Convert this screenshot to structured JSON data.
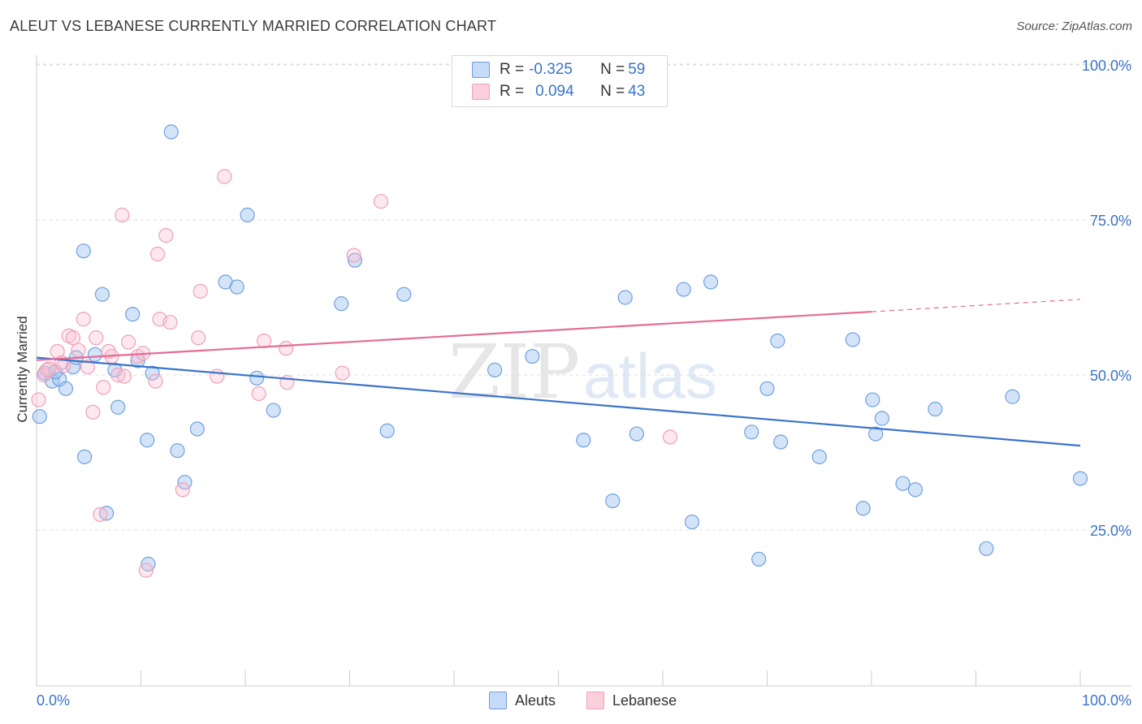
{
  "title": "ALEUT VS LEBANESE CURRENTLY MARRIED CORRELATION CHART",
  "source": "Source: ZipAtlas.com",
  "watermark": {
    "zip": "ZIP",
    "atlas": "atlas"
  },
  "legend": {
    "rows": [
      {
        "r_label": "R = ",
        "r_value": "-0.325",
        "n_label": "N = ",
        "n_value": "59"
      },
      {
        "r_label": "R = ",
        "r_value": "0.094",
        "n_label": "N = ",
        "n_value": "43"
      }
    ]
  },
  "bottom_legend": {
    "series_a": "Aleuts",
    "series_b": "Lebanese"
  },
  "chart_data": {
    "type": "scatter",
    "title": "ALEUT VS LEBANESE CURRENTLY MARRIED CORRELATION CHART",
    "ylabel": "Currently Married",
    "xlim": [
      0,
      100
    ],
    "ylim": [
      0,
      100
    ],
    "x_tick_labels": [
      "0.0%",
      "100.0%"
    ],
    "y_tick_labels": [
      "100.0%",
      "75.0%",
      "50.0%",
      "25.0%"
    ],
    "y_ticks": [
      100,
      75,
      50,
      25
    ],
    "grid": true,
    "legend_position": "top-center",
    "colors": {
      "aleuts": "#6fa0e0",
      "lebanese": "#f0a0b8",
      "aleuts_line": "#3b74c9",
      "lebanese_line": "#e46c96",
      "axis_text": "#3b74c9"
    },
    "series": [
      {
        "name": "Aleuts",
        "trend": {
          "x": [
            0,
            100
          ],
          "y": [
            52.8,
            38.6
          ]
        },
        "points": [
          [
            0.3,
            43.3
          ],
          [
            0.8,
            50.3
          ],
          [
            1.5,
            49.0
          ],
          [
            2.2,
            49.3
          ],
          [
            2.8,
            47.8
          ],
          [
            3.5,
            51.3
          ],
          [
            3.8,
            52.8
          ],
          [
            4.6,
            36.8
          ],
          [
            4.5,
            70.0
          ],
          [
            5.6,
            53.3
          ],
          [
            6.3,
            63.0
          ],
          [
            6.7,
            27.7
          ],
          [
            7.5,
            50.8
          ],
          [
            7.8,
            44.8
          ],
          [
            9.2,
            59.8
          ],
          [
            9.7,
            52.3
          ],
          [
            10.6,
            39.5
          ],
          [
            10.7,
            19.5
          ],
          [
            11.1,
            50.3
          ],
          [
            12.9,
            89.2
          ],
          [
            13.5,
            37.8
          ],
          [
            14.2,
            32.7
          ],
          [
            15.4,
            41.3
          ],
          [
            18.1,
            65.0
          ],
          [
            19.2,
            64.2
          ],
          [
            20.2,
            75.8
          ],
          [
            21.1,
            49.5
          ],
          [
            22.7,
            44.3
          ],
          [
            29.2,
            61.5
          ],
          [
            30.5,
            68.5
          ],
          [
            33.6,
            41.0
          ],
          [
            35.2,
            63.0
          ],
          [
            43.9,
            50.8
          ],
          [
            47.5,
            53.0
          ],
          [
            52.4,
            39.5
          ],
          [
            55.2,
            29.7
          ],
          [
            56.4,
            62.5
          ],
          [
            57.5,
            40.5
          ],
          [
            62.0,
            63.8
          ],
          [
            62.8,
            26.3
          ],
          [
            64.6,
            65.0
          ],
          [
            68.5,
            40.8
          ],
          [
            69.2,
            20.3
          ],
          [
            70.0,
            47.8
          ],
          [
            71.0,
            55.5
          ],
          [
            71.3,
            39.2
          ],
          [
            75.0,
            36.8
          ],
          [
            78.2,
            55.7
          ],
          [
            79.2,
            28.5
          ],
          [
            80.1,
            46.0
          ],
          [
            80.4,
            40.5
          ],
          [
            81.0,
            43.0
          ],
          [
            83.0,
            32.5
          ],
          [
            84.2,
            31.5
          ],
          [
            86.1,
            44.5
          ],
          [
            91.0,
            22.0
          ],
          [
            93.5,
            46.5
          ],
          [
            100.0,
            33.3
          ],
          [
            1.8,
            50.5
          ]
        ]
      },
      {
        "name": "Lebanese",
        "trend": {
          "x": [
            0,
            80
          ],
          "y": [
            52.4,
            60.2
          ]
        },
        "trend_dashed": {
          "x": [
            80,
            100
          ],
          "y": [
            60.2,
            62.2
          ]
        },
        "points": [
          [
            0.2,
            46.0
          ],
          [
            0.7,
            50.0
          ],
          [
            1.2,
            51.0
          ],
          [
            2.0,
            53.8
          ],
          [
            2.6,
            51.5
          ],
          [
            3.1,
            56.3
          ],
          [
            3.5,
            56.0
          ],
          [
            4.0,
            54.0
          ],
          [
            4.5,
            59.0
          ],
          [
            4.9,
            51.3
          ],
          [
            5.4,
            44.0
          ],
          [
            5.7,
            56.0
          ],
          [
            6.1,
            27.5
          ],
          [
            6.4,
            48.0
          ],
          [
            6.9,
            53.8
          ],
          [
            7.2,
            53.0
          ],
          [
            7.8,
            50.0
          ],
          [
            8.2,
            75.8
          ],
          [
            8.4,
            49.8
          ],
          [
            8.8,
            55.3
          ],
          [
            9.7,
            53.0
          ],
          [
            10.2,
            53.5
          ],
          [
            10.5,
            18.5
          ],
          [
            11.4,
            49.0
          ],
          [
            11.6,
            69.5
          ],
          [
            11.8,
            59.0
          ],
          [
            12.4,
            72.5
          ],
          [
            12.8,
            58.5
          ],
          [
            14.0,
            31.5
          ],
          [
            15.5,
            56.0
          ],
          [
            15.7,
            63.5
          ],
          [
            17.3,
            49.8
          ],
          [
            18.0,
            82.0
          ],
          [
            21.3,
            47.0
          ],
          [
            21.8,
            55.5
          ],
          [
            23.9,
            54.3
          ],
          [
            24.0,
            48.8
          ],
          [
            29.3,
            50.3
          ],
          [
            30.4,
            69.3
          ],
          [
            33.0,
            78.0
          ],
          [
            60.7,
            40.0
          ],
          [
            2.4,
            52.0
          ],
          [
            1.0,
            50.8
          ]
        ]
      }
    ]
  }
}
